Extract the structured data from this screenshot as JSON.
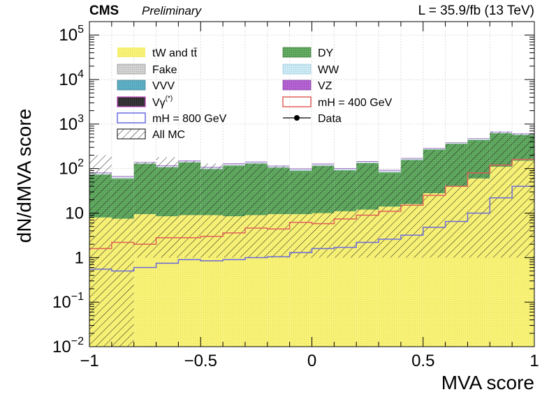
{
  "header": {
    "cms": "CMS",
    "preliminary": "Preliminary",
    "lumi": "L = 35.9/fb (13 TeV)"
  },
  "colors": {
    "tw_ttbar": "#f5ee5c",
    "dy": "#4f9a4f",
    "fake": "#c0c0c0",
    "ww": "#bfe3f0",
    "vvv": "#4f9fb8",
    "vz": "#a045c0",
    "vgamma": "#1a1a1a",
    "mh400": "#e0605a",
    "mh800": "#6a6ae0",
    "data": "#000000"
  },
  "legend": {
    "tw_ttbar": "tW and tt̄",
    "fake": "Fake",
    "vvv": "VVV",
    "vgamma": "Vγ(*)",
    "mh800": "mH = 800 GeV",
    "allmc": "All MC",
    "dy": "DY",
    "ww": "WW",
    "vz": "VZ",
    "mh400": "mH = 400 GeV",
    "data": "Data"
  },
  "chart_data": {
    "type": "histogram",
    "xlabel": "MVA score",
    "ylabel": "dN/dMVA score",
    "xlim": [
      -1,
      1
    ],
    "ylim": [
      0.01,
      200000
    ],
    "yscale": "log",
    "grid": true,
    "legend_position": "top-left",
    "x_ticks": [
      "−1",
      "−0.5",
      "0",
      "0.5",
      "1"
    ],
    "y_ticks": [
      {
        "value": 0.01,
        "base": "10",
        "exp": "−2"
      },
      {
        "value": 0.1,
        "base": "10",
        "exp": "−1"
      },
      {
        "value": 1,
        "base": "1",
        "exp": ""
      },
      {
        "value": 10,
        "base": "10",
        "exp": ""
      },
      {
        "value": 100,
        "base": "10",
        "exp": "2"
      },
      {
        "value": 1000,
        "base": "10",
        "exp": "3"
      },
      {
        "value": 10000,
        "base": "10",
        "exp": "4"
      },
      {
        "value": 100000,
        "base": "10",
        "exp": "5"
      }
    ],
    "bin_edges": [
      -1.0,
      -0.9,
      -0.8,
      -0.7,
      -0.6,
      -0.5,
      -0.4,
      -0.3,
      -0.2,
      -0.1,
      0.0,
      0.1,
      0.2,
      0.3,
      0.4,
      0.5,
      0.6,
      0.7,
      0.8,
      0.9,
      1.0
    ],
    "stack": [
      {
        "name": "tW and tt̄",
        "key": "tw_ttbar",
        "values": [
          8,
          7.5,
          9.5,
          8.5,
          9,
          9,
          8.5,
          9,
          9.5,
          9.5,
          10,
          11,
          12,
          14,
          16,
          28,
          40,
          60,
          110,
          150
        ]
      },
      {
        "name": "DY",
        "key": "dy",
        "values": [
          65,
          52,
          118,
          98,
          128,
          88,
          108,
          120,
          95,
          80,
          105,
          80,
          120,
          68,
          140,
          240,
          320,
          380,
          510,
          420
        ]
      },
      {
        "name": "VVV",
        "key": "vvv",
        "values": [
          0.5,
          0.5,
          0.8,
          0.8,
          1,
          1,
          1,
          1,
          1,
          1,
          1,
          1,
          1,
          1,
          1.5,
          2,
          2,
          3,
          4,
          4
        ]
      },
      {
        "name": "Fake",
        "key": "fake",
        "values": [
          3,
          2.5,
          4,
          3.5,
          4,
          3.5,
          4,
          4,
          3.5,
          3,
          4,
          3,
          4,
          3,
          4,
          6,
          8,
          10,
          15,
          15
        ]
      },
      {
        "name": "WW",
        "key": "ww",
        "values": [
          3,
          3,
          5,
          4,
          5,
          4,
          5,
          5,
          4,
          4,
          5,
          4,
          5,
          4,
          6,
          8,
          10,
          14,
          20,
          18
        ]
      },
      {
        "name": "VZ",
        "key": "vz",
        "values": [
          2,
          2,
          3,
          3,
          4,
          3,
          4,
          4,
          3,
          3,
          4,
          3,
          4,
          3,
          5,
          7,
          8,
          10,
          14,
          12
        ]
      },
      {
        "name": "Vγ(*)",
        "key": "vgamma",
        "values": [
          0.3,
          0.3,
          0.4,
          0.4,
          0.5,
          0.4,
          0.5,
          0.5,
          0.4,
          0.4,
          0.5,
          0.4,
          0.5,
          0.4,
          0.6,
          0.8,
          1,
          1.2,
          1.5,
          1.5
        ]
      }
    ],
    "allmc_band": {
      "upper": [
        200,
        55,
        140,
        180,
        150,
        130,
        110,
        130,
        115,
        80,
        115,
        90,
        130,
        75,
        155,
        260,
        350,
        420,
        680,
        610
      ],
      "lower": [
        0.01,
        0.01,
        1,
        1,
        1,
        1,
        1,
        1,
        1,
        1,
        1,
        1,
        1,
        1,
        1,
        1,
        1,
        1,
        1,
        1
      ]
    },
    "signals": [
      {
        "name": "mH = 400 GeV",
        "key": "mh400",
        "values": [
          1.6,
          2.2,
          2.0,
          2.8,
          2.8,
          3.0,
          3.6,
          4.6,
          4.4,
          6.2,
          5.8,
          7.4,
          9.0,
          11,
          15,
          25,
          40,
          80,
          120,
          160
        ]
      },
      {
        "name": "mH = 800 GeV",
        "key": "mh800",
        "values": [
          0.55,
          0.5,
          0.6,
          0.75,
          0.9,
          0.85,
          0.9,
          1.0,
          1.05,
          1.3,
          1.6,
          1.7,
          2.2,
          2.6,
          3.2,
          4.8,
          6.5,
          10,
          22,
          40
        ]
      }
    ]
  }
}
